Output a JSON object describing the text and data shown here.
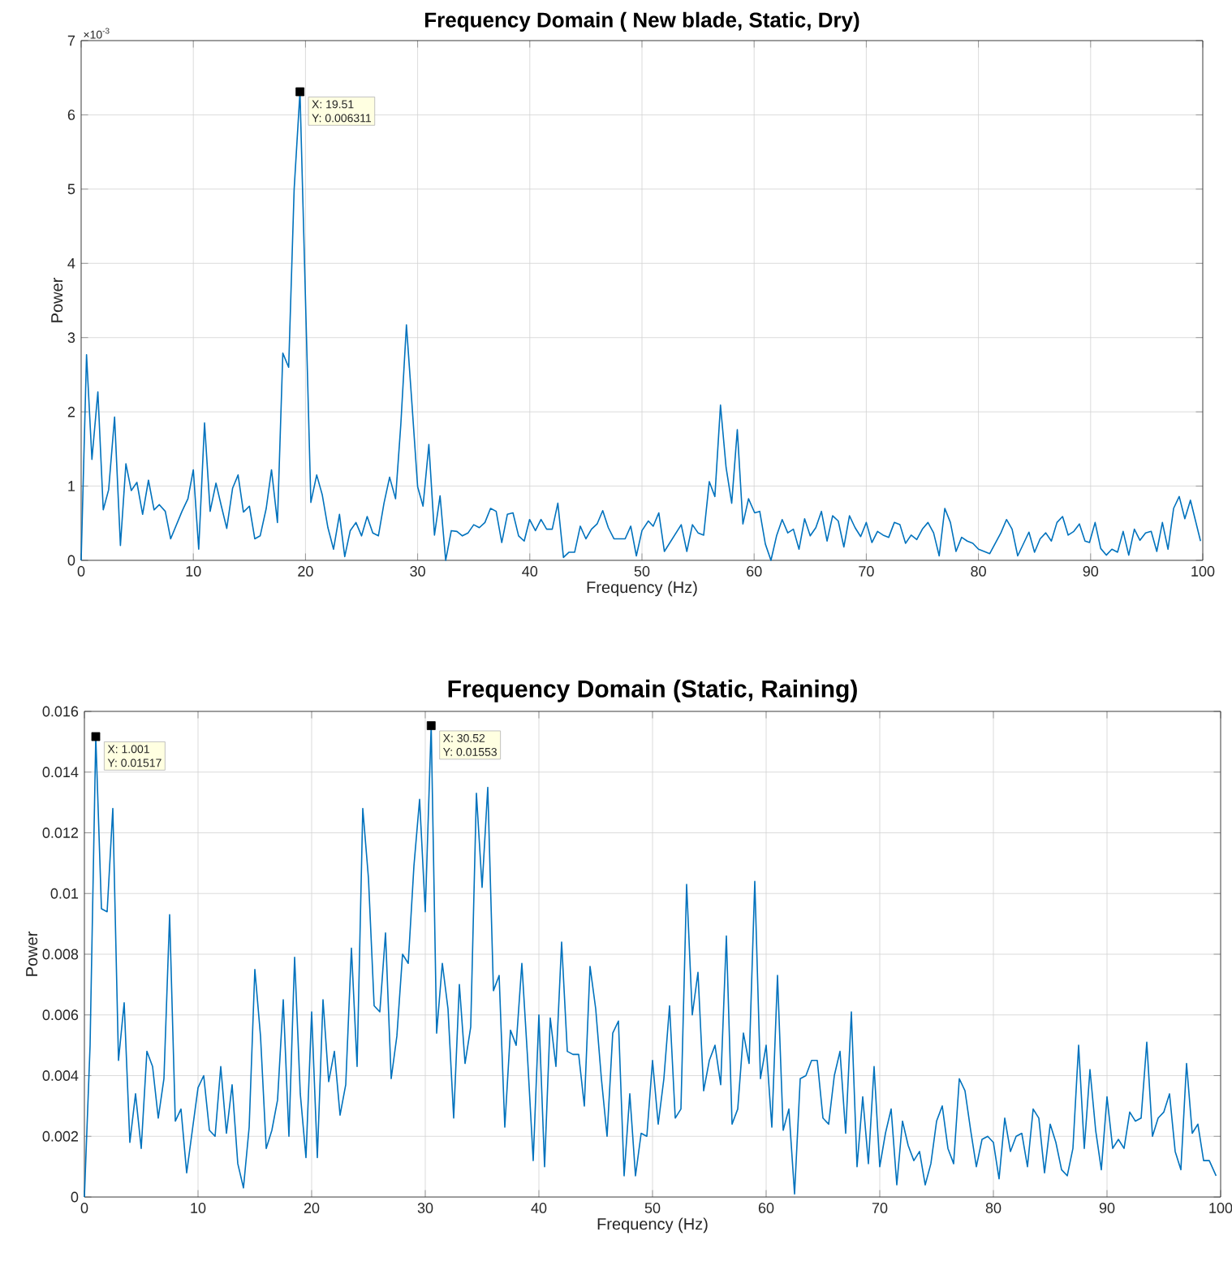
{
  "chart_data": [
    {
      "type": "line",
      "title": "Frequency Domain ( New blade, Static, Dry)",
      "xlabel": "Frequency (Hz)",
      "ylabel": "Power",
      "grid": true,
      "xlim": [
        0,
        100
      ],
      "ylim": [
        0,
        7
      ],
      "xticks": [
        0,
        10,
        20,
        30,
        40,
        50,
        60,
        70,
        80,
        90,
        100
      ],
      "yticks": [
        0,
        1,
        2,
        3,
        4,
        5,
        6,
        7
      ],
      "annotations": [
        "×10$^{-3}$",
        {
          "text": "X: 19.51",
          "x": 19.51,
          "y": 6.311
        },
        {
          "text": "Y: 0.006311",
          "x": 19.51,
          "y": 6.311
        }
      ],
      "series": [
        {
          "color": "#0072bd",
          "x": [
            0,
            0.48,
            0.96,
            1.49,
            1.97,
            2.45,
            2.98,
            3.5,
            3.99,
            4.47,
            4.97,
            5.48,
            6.0,
            6.5,
            6.97,
            7.5,
            7.98,
            8.99,
            9.52,
            10.0,
            10.48,
            11.0,
            11.5,
            12.02,
            12.5,
            12.98,
            13.5,
            13.99,
            14.47,
            15.0,
            15.48,
            15.96,
            16.5,
            16.97,
            17.5,
            17.98,
            18.5,
            18.99,
            19.51,
            20.48,
            21.0,
            21.5,
            22.0,
            22.5,
            23.03,
            23.5,
            23.99,
            24.5,
            25.0,
            25.5,
            26.0,
            26.5,
            27.0,
            27.5,
            28.03,
            28.5,
            29.0,
            29.5,
            30.0,
            30.48,
            31.0,
            31.5,
            32.0,
            32.5,
            33.0,
            33.5,
            33.99,
            34.5,
            35.0,
            35.5,
            36.0,
            36.5,
            37.0,
            37.5,
            38.0,
            38.5,
            39.0,
            39.5,
            39.98,
            40.5,
            41.0,
            41.5,
            42.0,
            42.5,
            43.0,
            43.5,
            44.0,
            44.5,
            45.0,
            45.5,
            46.0,
            46.5,
            47.0,
            47.5,
            48.5,
            49.0,
            49.5,
            50.0,
            50.57,
            51.0,
            51.5,
            52.0,
            53.5,
            54.0,
            54.5,
            55.0,
            55.5,
            56.0,
            56.5,
            57.0,
            57.5,
            58.0,
            58.5,
            59.0,
            59.5,
            60.05,
            60.5,
            61.0,
            61.5,
            62.0,
            62.5,
            63.0,
            63.5,
            64.0,
            64.5,
            65.0,
            65.5,
            66.0,
            66.5,
            67.0,
            67.5,
            68.0,
            68.5,
            69.0,
            69.5,
            70.0,
            70.5,
            71.0,
            71.5,
            72.0,
            72.5,
            73.0,
            73.5,
            74.0,
            74.5,
            75.0,
            75.5,
            76.0,
            76.5,
            77.0,
            77.5,
            78.0,
            78.5,
            79.0,
            79.5,
            80.0,
            81.0,
            82.0,
            82.5,
            83.0,
            83.5,
            84.5,
            85.0,
            85.5,
            86.0,
            86.5,
            87.0,
            87.5,
            88.0,
            88.5,
            89.0,
            89.5,
            89.9,
            90.4,
            90.9,
            91.4,
            91.9,
            92.4,
            92.9,
            93.4,
            93.9,
            94.4,
            94.9,
            95.4,
            95.9,
            96.4,
            96.9,
            97.4,
            97.9,
            98.4,
            98.9,
            99.8
          ],
          "values": [
            0,
            2.77,
            1.36,
            2.27,
            0.68,
            0.95,
            1.93,
            0.2,
            1.3,
            0.94,
            1.05,
            0.62,
            1.08,
            0.68,
            0.75,
            0.66,
            0.29,
            0.66,
            0.83,
            1.22,
            0.15,
            1.85,
            0.66,
            1.04,
            0.73,
            0.43,
            0.97,
            1.15,
            0.65,
            0.73,
            0.29,
            0.33,
            0.7,
            1.22,
            0.51,
            2.79,
            2.6,
            5.0,
            6.311,
            0.78,
            1.15,
            0.88,
            0.44,
            0.15,
            0.62,
            0.05,
            0.4,
            0.51,
            0.33,
            0.59,
            0.37,
            0.33,
            0.77,
            1.12,
            0.83,
            1.83,
            3.17,
            2.09,
            0.99,
            0.73,
            1.56,
            0.34,
            0.87,
            0,
            0.4,
            0.39,
            0.33,
            0.37,
            0.48,
            0.44,
            0.51,
            0.7,
            0.66,
            0.24,
            0.62,
            0.64,
            0.33,
            0.26,
            0.55,
            0.4,
            0.55,
            0.42,
            0.42,
            0.77,
            0.04,
            0.11,
            0.11,
            0.46,
            0.29,
            0.42,
            0.49,
            0.67,
            0.44,
            0.29,
            0.29,
            0.46,
            0.06,
            0.4,
            0.53,
            0.46,
            0.64,
            0.12,
            0.48,
            0.12,
            0.48,
            0.37,
            0.34,
            1.06,
            0.86,
            2.09,
            1.25,
            0.77,
            1.76,
            0.49,
            0.83,
            0.64,
            0.66,
            0.22,
            0,
            0.33,
            0.55,
            0.37,
            0.42,
            0.15,
            0.56,
            0.33,
            0.44,
            0.66,
            0.26,
            0.6,
            0.53,
            0.18,
            0.6,
            0.44,
            0.32,
            0.51,
            0.24,
            0.39,
            0.34,
            0.31,
            0.51,
            0.48,
            0.23,
            0.34,
            0.28,
            0.42,
            0.51,
            0.37,
            0.06,
            0.7,
            0.51,
            0.12,
            0.31,
            0.26,
            0.23,
            0.15,
            0.09,
            0.37,
            0.55,
            0.42,
            0.06,
            0.38,
            0.11,
            0.29,
            0.37,
            0.26,
            0.51,
            0.59,
            0.34,
            0.39,
            0.49,
            0.26,
            0.24,
            0.51,
            0.16,
            0.07,
            0.15,
            0.11,
            0.39,
            0.07,
            0.42,
            0.27,
            0.37,
            0.39,
            0.12,
            0.51,
            0.15,
            0.7,
            0.86,
            0.56,
            0.81,
            0.26
          ]
        }
      ]
    },
    {
      "type": "line",
      "title": "Frequency Domain (Static, Raining)",
      "xlabel": "Frequency (Hz)",
      "ylabel": "Power",
      "grid": true,
      "xlim": [
        0,
        100
      ],
      "ylim": [
        0,
        0.016
      ],
      "xticks": [
        0,
        10,
        20,
        30,
        40,
        50,
        60,
        70,
        80,
        90,
        100
      ],
      "yticks": [
        0,
        0.002,
        0.004,
        0.006,
        0.008,
        0.01,
        0.012,
        0.014,
        0.016
      ],
      "annotations": [
        {
          "text": "X: 1.001",
          "x": 1.001,
          "y": 0.01517
        },
        {
          "text": "Y: 0.01517",
          "x": 1.001,
          "y": 0.01517
        },
        {
          "text": "X: 30.52",
          "x": 30.52,
          "y": 0.01553
        },
        {
          "text": "Y: 0.01553",
          "x": 30.52,
          "y": 0.01553
        }
      ],
      "series": [
        {
          "color": "#0072bd",
          "x": [
            0,
            0.5,
            1.001,
            1.5,
            2.0,
            2.5,
            3.0,
            3.5,
            4.0,
            4.5,
            5.0,
            5.5,
            6.0,
            6.5,
            7.0,
            7.5,
            8.0,
            8.5,
            9.0,
            9.5,
            10,
            10.5,
            11,
            11.5,
            12,
            12.5,
            13,
            13.5,
            14,
            14.5,
            15,
            15.5,
            16,
            16.5,
            17,
            17.5,
            18,
            18.5,
            19,
            19.5,
            20,
            20.5,
            21,
            21.5,
            22,
            22.5,
            23,
            23.5,
            24,
            24.5,
            25,
            25.5,
            26,
            26.5,
            27,
            27.5,
            28,
            28.5,
            29,
            29.5,
            30,
            30.52,
            31,
            31.5,
            32,
            32.5,
            33,
            33.5,
            34,
            34.5,
            35,
            35.5,
            36,
            36.5,
            37,
            37.5,
            38,
            38.5,
            39,
            39.5,
            40,
            40.5,
            41,
            41.5,
            42,
            42.5,
            43,
            43.5,
            44,
            44.5,
            45,
            45.5,
            46,
            46.5,
            47,
            47.5,
            48,
            48.5,
            49,
            49.5,
            50,
            50.5,
            51,
            51.5,
            52,
            52.5,
            53,
            53.5,
            54,
            54.5,
            55,
            55.5,
            56,
            56.5,
            57,
            57.5,
            58,
            58.5,
            59,
            59.5,
            60,
            60.5,
            61,
            61.5,
            62,
            62.5,
            63,
            63.5,
            64,
            64.5,
            65,
            65.5,
            66,
            66.5,
            67,
            67.5,
            68,
            68.5,
            69,
            69.5,
            70,
            70.5,
            71,
            71.5,
            72,
            72.5,
            73,
            73.5,
            74,
            74.5,
            75,
            75.5,
            76,
            76.5,
            77,
            77.5,
            78,
            78.5,
            79,
            79.5,
            80,
            80.5,
            81,
            81.5,
            82,
            82.5,
            83,
            83.5,
            84,
            84.5,
            85,
            85.5,
            86,
            86.5,
            87,
            87.5,
            88,
            88.5,
            89,
            89.5,
            90,
            90.5,
            91,
            91.5,
            92,
            92.5,
            93,
            93.5,
            94,
            94.5,
            95,
            95.5,
            96,
            96.5,
            97,
            97.5,
            98,
            98.5,
            99,
            99.6
          ],
          "values": [
            0,
            0.005,
            0.01517,
            0.0095,
            0.0094,
            0.0128,
            0.0045,
            0.0064,
            0.0018,
            0.0034,
            0.0016,
            0.0048,
            0.0043,
            0.0026,
            0.0039,
            0.0093,
            0.0025,
            0.0029,
            0.0008,
            0.0022,
            0.0036,
            0.004,
            0.0022,
            0.002,
            0.0043,
            0.0021,
            0.0037,
            0.0011,
            0.0003,
            0.0023,
            0.0075,
            0.0053,
            0.0016,
            0.0022,
            0.0032,
            0.0065,
            0.002,
            0.0079,
            0.0034,
            0.0013,
            0.0061,
            0.0013,
            0.0065,
            0.0038,
            0.0048,
            0.0027,
            0.0037,
            0.0082,
            0.0043,
            0.0128,
            0.0105,
            0.0063,
            0.0061,
            0.0087,
            0.0039,
            0.0053,
            0.008,
            0.0077,
            0.0109,
            0.0131,
            0.0094,
            0.01553,
            0.0054,
            0.0077,
            0.0062,
            0.0026,
            0.007,
            0.0044,
            0.0056,
            0.0133,
            0.0102,
            0.0135,
            0.0068,
            0.0073,
            0.0023,
            0.0055,
            0.005,
            0.0077,
            0.0046,
            0.0012,
            0.006,
            0.001,
            0.0059,
            0.0043,
            0.0084,
            0.0048,
            0.0047,
            0.0047,
            0.003,
            0.0076,
            0.0062,
            0.0039,
            0.002,
            0.0054,
            0.0058,
            0.0007,
            0.0034,
            0.0007,
            0.0021,
            0.002,
            0.0045,
            0.0024,
            0.0039,
            0.0063,
            0.0026,
            0.0029,
            0.0103,
            0.006,
            0.0074,
            0.0035,
            0.0045,
            0.005,
            0.0037,
            0.0086,
            0.0024,
            0.0029,
            0.0054,
            0.0044,
            0.0104,
            0.0039,
            0.005,
            0.0023,
            0.0073,
            0.0022,
            0.0029,
            0.0001,
            0.0039,
            0.004,
            0.0045,
            0.0045,
            0.0026,
            0.0024,
            0.004,
            0.0048,
            0.0021,
            0.0061,
            0.001,
            0.0033,
            0.0011,
            0.0043,
            0.001,
            0.0021,
            0.0029,
            0.0004,
            0.0025,
            0.0017,
            0.0012,
            0.0015,
            0.0004,
            0.0011,
            0.0025,
            0.003,
            0.0016,
            0.0011,
            0.0039,
            0.0035,
            0.0022,
            0.001,
            0.0019,
            0.002,
            0.0018,
            0.0006,
            0.0026,
            0.0015,
            0.002,
            0.0021,
            0.001,
            0.0029,
            0.0026,
            0.0008,
            0.0024,
            0.0018,
            0.0009,
            0.0007,
            0.0016,
            0.005,
            0.0016,
            0.0042,
            0.0022,
            0.0009,
            0.0033,
            0.0016,
            0.0019,
            0.0016,
            0.0028,
            0.0025,
            0.0026,
            0.0051,
            0.002,
            0.0026,
            0.0028,
            0.0034,
            0.0015,
            0.0009,
            0.0044,
            0.0021,
            0.0024,
            0.0012,
            0.0012,
            0.0007
          ]
        }
      ]
    }
  ]
}
